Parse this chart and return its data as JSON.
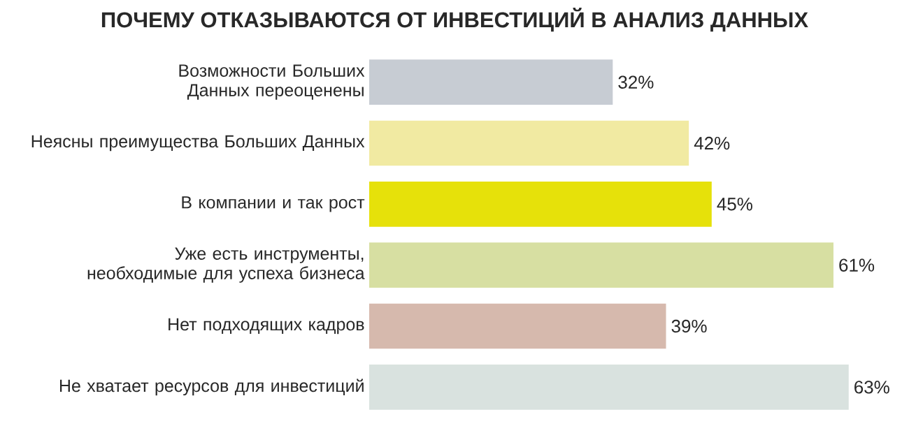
{
  "chart_data": {
    "type": "bar",
    "orientation": "horizontal",
    "title": "ПОЧЕМУ ОТКАЗЫВАЮТСЯ ОТ ИНВЕСТИЦИЙ В АНАЛИЗ ДАННЫХ",
    "categories": [
      "Возможности Больших Данных переоценены",
      "Неясны преимущества Больших Данных",
      "В компании и так рост",
      "Уже есть инструменты, необходимые для успеха бизнеса",
      "Нет подходящих кадров",
      "Не хватает ресурсов для инвестиций"
    ],
    "values": [
      32,
      42,
      45,
      61,
      39,
      63
    ],
    "value_labels": [
      "32%",
      "42%",
      "45%",
      "61%",
      "39%",
      "63%"
    ],
    "colors": [
      "#c7ccd3",
      "#f1eaa2",
      "#e6e10a",
      "#d7dfa2",
      "#d6b9ad",
      "#d9e2df"
    ]
  }
}
